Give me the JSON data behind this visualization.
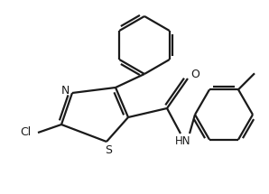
{
  "background_color": "#ffffff",
  "line_color": "#1a1a1a",
  "line_width": 1.6,
  "figsize": [
    2.98,
    2.15
  ],
  "dpi": 100,
  "xlim": [
    0,
    298
  ],
  "ylim": [
    0,
    215
  ]
}
